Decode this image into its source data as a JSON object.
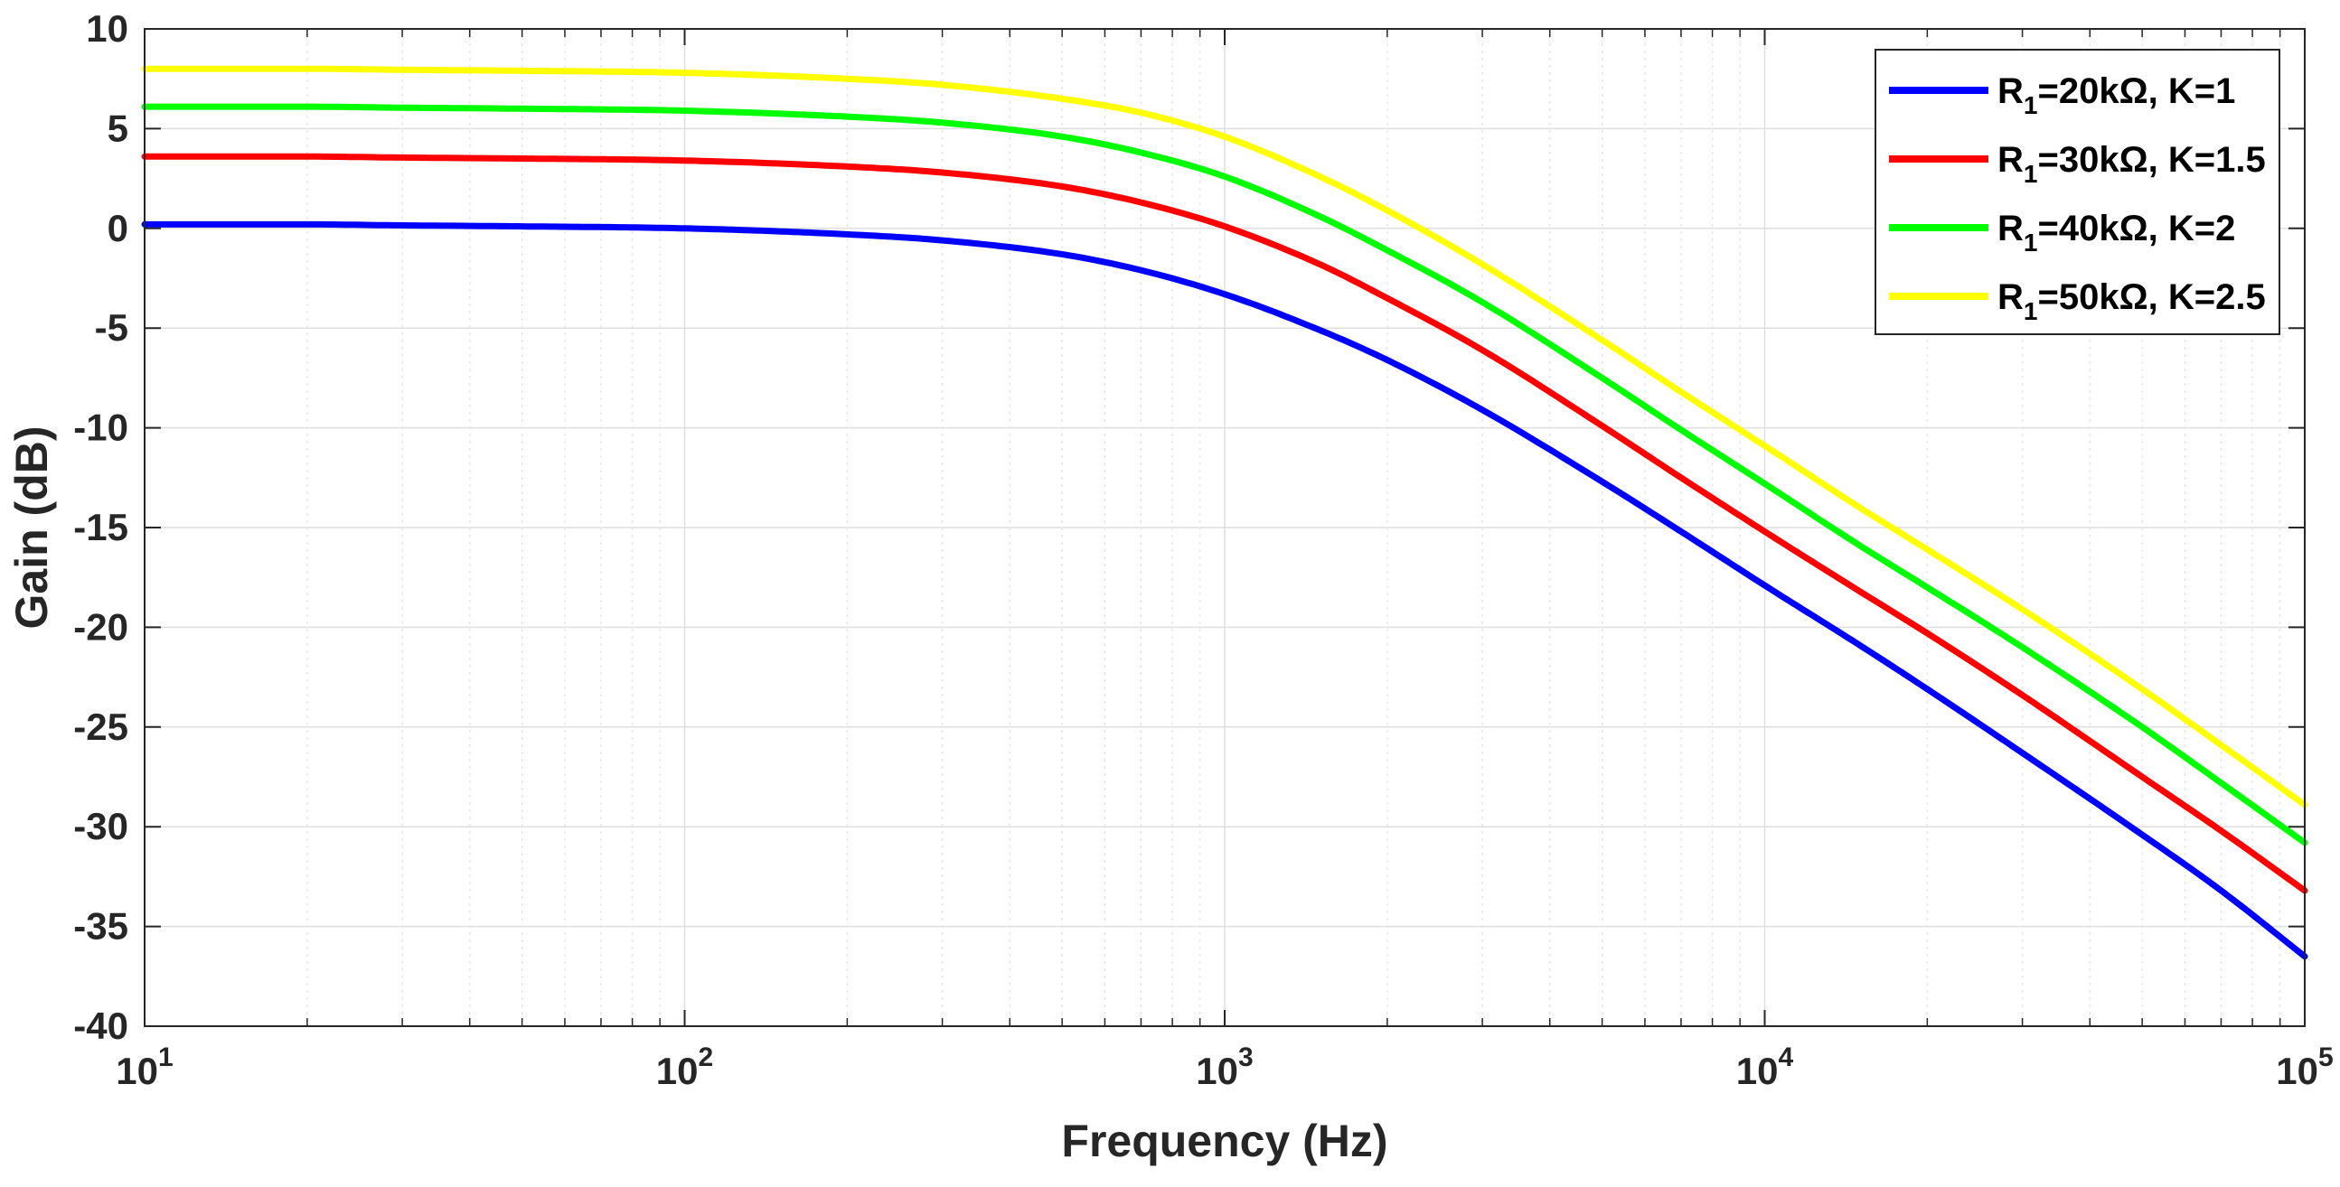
{
  "chart_data": {
    "type": "line",
    "title": "",
    "xlabel": "Frequency (Hz)",
    "ylabel": "Gain (dB)",
    "xscale": "log",
    "xlim": [
      10,
      100000
    ],
    "ylim": [
      -40,
      10
    ],
    "grid": true,
    "legend_position": "top-right",
    "y_ticks": [
      10,
      5,
      0,
      -5,
      -10,
      -15,
      -20,
      -25,
      -30,
      -35,
      -40
    ],
    "y_tick_labels": [
      "10",
      "5",
      "0",
      "-5",
      "-10",
      "-15",
      "-20",
      "-25",
      "-30",
      "-35",
      "-40"
    ],
    "x_ticks": [
      {
        "value": 10,
        "base": "10",
        "exp": "1"
      },
      {
        "value": 100,
        "base": "10",
        "exp": "2"
      },
      {
        "value": 1000,
        "base": "10",
        "exp": "3"
      },
      {
        "value": 10000,
        "base": "10",
        "exp": "4"
      },
      {
        "value": 100000,
        "base": "10",
        "exp": "5"
      }
    ],
    "x": [
      10,
      20,
      30,
      50,
      100,
      200,
      300,
      500,
      700,
      1000,
      1500,
      2000,
      3000,
      5000,
      7000,
      10000,
      15000,
      20000,
      30000,
      50000,
      70000,
      100000
    ],
    "series": [
      {
        "legend_prefix": "R",
        "legend_sub": "1",
        "legend_suffix": "=20kΩ, K=1",
        "color": "#0000ff",
        "values": [
          0.2,
          0.2,
          0.15,
          0.1,
          0.0,
          -0.3,
          -0.6,
          -1.3,
          -2.1,
          -3.3,
          -5.1,
          -6.6,
          -9.1,
          -12.7,
          -15.2,
          -17.9,
          -20.9,
          -23.1,
          -26.3,
          -30.4,
          -33.2,
          -36.5
        ]
      },
      {
        "legend_prefix": "R",
        "legend_sub": "1",
        "legend_suffix": "=30kΩ, K=1.5",
        "color": "#ff0000",
        "values": [
          3.6,
          3.6,
          3.55,
          3.5,
          3.4,
          3.1,
          2.8,
          2.1,
          1.3,
          0.1,
          -1.8,
          -3.5,
          -6.1,
          -9.9,
          -12.5,
          -15.2,
          -18.2,
          -20.3,
          -23.4,
          -27.5,
          -30.2,
          -33.2
        ]
      },
      {
        "legend_prefix": "R",
        "legend_sub": "1",
        "legend_suffix": "=40kΩ, K=2",
        "color": "#00ff00",
        "values": [
          6.1,
          6.1,
          6.05,
          6.0,
          5.9,
          5.6,
          5.3,
          4.6,
          3.8,
          2.6,
          0.6,
          -1.1,
          -3.7,
          -7.5,
          -10.1,
          -12.8,
          -15.9,
          -18.0,
          -21.0,
          -25.0,
          -27.8,
          -30.8
        ]
      },
      {
        "legend_prefix": "R",
        "legend_sub": "1",
        "legend_suffix": "=50kΩ, K=2.5",
        "color": "#ffff00",
        "values": [
          8.0,
          8.0,
          7.95,
          7.9,
          7.8,
          7.5,
          7.2,
          6.5,
          5.8,
          4.6,
          2.6,
          0.9,
          -1.8,
          -5.6,
          -8.2,
          -10.9,
          -14.0,
          -16.1,
          -19.1,
          -23.1,
          -25.9,
          -28.9
        ]
      }
    ]
  }
}
